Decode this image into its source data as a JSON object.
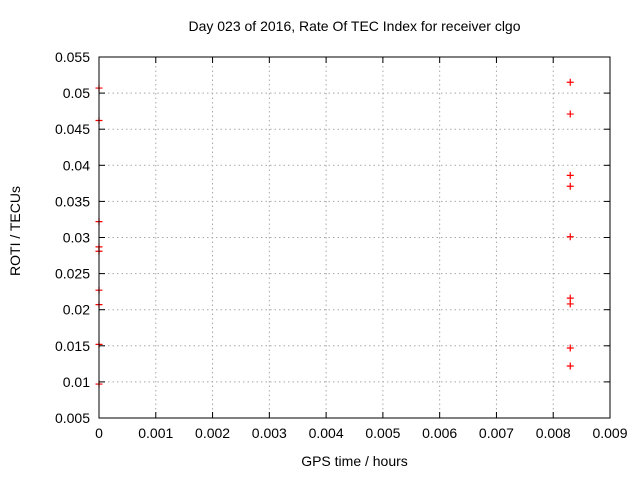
{
  "chart_data": {
    "type": "scatter",
    "title": "Day 023 of 2016, Rate Of TEC Index for receiver clgo",
    "xlabel": "GPS time / hours",
    "ylabel": "ROTI / TECUs",
    "xlim": [
      0,
      0.009
    ],
    "ylim": [
      0.005,
      0.055
    ],
    "x_ticks": [
      "0",
      "0.001",
      "0.002",
      "0.003",
      "0.004",
      "0.005",
      "0.006",
      "0.007",
      "0.008",
      "0.009"
    ],
    "y_ticks": [
      "0.005",
      "0.01",
      "0.015",
      "0.02",
      "0.025",
      "0.03",
      "0.035",
      "0.04",
      "0.045",
      "0.05",
      "0.055"
    ],
    "grid": true,
    "legend_position": "none",
    "colors": {
      "marker": "#ff0000",
      "border": "#000000",
      "grid": "#a8a8a8",
      "background": "#ffffff"
    },
    "marker_shape": "plus",
    "series": [
      {
        "name": "ROTI",
        "points": [
          [
            0,
            0.0507
          ],
          [
            0,
            0.0462
          ],
          [
            0,
            0.0322
          ],
          [
            0,
            0.0287
          ],
          [
            0,
            0.0281
          ],
          [
            0,
            0.0227
          ],
          [
            0,
            0.0207
          ],
          [
            0,
            0.0152
          ],
          [
            0,
            0.0097
          ],
          [
            0.0083,
            0.0515
          ],
          [
            0.0083,
            0.0471
          ],
          [
            0.0083,
            0.0386
          ],
          [
            0.0083,
            0.0371
          ],
          [
            0.0083,
            0.0301
          ],
          [
            0.0083,
            0.0216
          ],
          [
            0.0083,
            0.0208
          ],
          [
            0.0083,
            0.0147
          ],
          [
            0.0083,
            0.0122
          ]
        ]
      }
    ]
  }
}
